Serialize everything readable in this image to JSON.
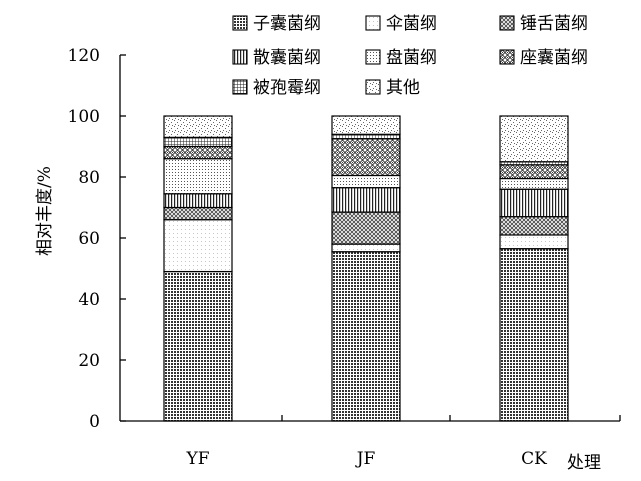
{
  "chart_data": {
    "type": "bar",
    "stacked": true,
    "categories": [
      "YF",
      "JF",
      "CK"
    ],
    "xlabel": "处理",
    "ylabel": "相对丰度/%",
    "ylim": [
      0,
      120
    ],
    "yticks": [
      0,
      20,
      40,
      60,
      80,
      100,
      120
    ],
    "grid": false,
    "legend_position": "top-right",
    "series": [
      {
        "name": "子囊菌纲",
        "pattern": "dense-grid",
        "values": [
          49,
          55.5,
          56.5
        ]
      },
      {
        "name": "伞菌纲",
        "pattern": "light-dots",
        "values": [
          17,
          2.5,
          4.5
        ]
      },
      {
        "name": "锤舌菌纲",
        "pattern": "crosshatch",
        "values": [
          4,
          10.5,
          6
        ]
      },
      {
        "name": "散囊菌纲",
        "pattern": "vertical-lines",
        "values": [
          4.5,
          8,
          9
        ]
      },
      {
        "name": "盘菌纲",
        "pattern": "small-dots",
        "values": [
          11.5,
          4,
          3.5
        ]
      },
      {
        "name": "座囊菌纲",
        "pattern": "diamond-hatch",
        "values": [
          4,
          12,
          4.5
        ]
      },
      {
        "name": "被孢霉纲",
        "pattern": "grid",
        "values": [
          3,
          1.5,
          1
        ]
      },
      {
        "name": "其他",
        "pattern": "scattered-dots",
        "values": [
          7,
          6,
          15
        ]
      }
    ]
  }
}
